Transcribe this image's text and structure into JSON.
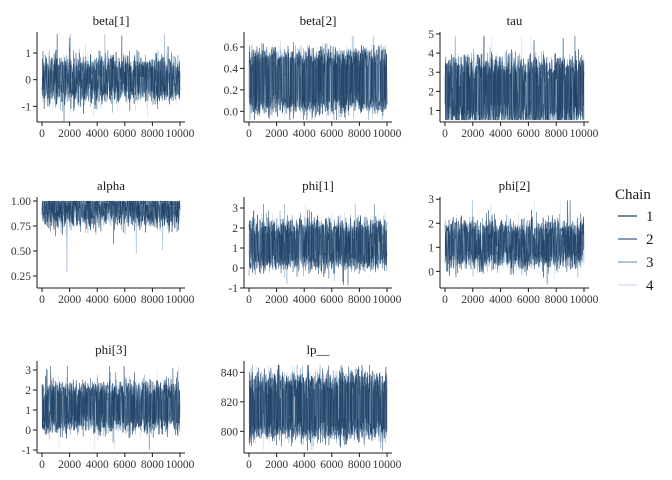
{
  "chart_data": [
    {
      "type": "line",
      "title": "beta[1]",
      "x_ticks": [
        "0",
        "2000",
        "4000",
        "6000",
        "8000",
        "10000"
      ],
      "xlim": [
        0,
        10000
      ],
      "y_ticks": [
        {
          "value": 1,
          "label": "1"
        },
        {
          "value": 0,
          "label": "0"
        },
        {
          "value": -1,
          "label": "-1"
        }
      ],
      "ylim": [
        -1.55,
        1.75
      ],
      "trace": {
        "n_iter": 10000,
        "mode_low": -0.45,
        "mode_high": 0.45,
        "spread": 0.28,
        "min": -1.55,
        "max": 1.7
      }
    },
    {
      "type": "line",
      "title": "beta[2]",
      "x_ticks": [
        "0",
        "2000",
        "4000",
        "6000",
        "8000",
        "10000"
      ],
      "xlim": [
        0,
        10000
      ],
      "y_ticks": [
        {
          "value": 0.6,
          "label": "0.6"
        },
        {
          "value": 0.4,
          "label": "0.4"
        },
        {
          "value": 0.2,
          "label": "0.2"
        },
        {
          "value": 0.0,
          "label": "0.0"
        }
      ],
      "ylim": [
        -0.09,
        0.73
      ],
      "trace": {
        "n_iter": 10000,
        "mode_low": 0.07,
        "mode_high": 0.5,
        "spread": 0.055,
        "min": -0.08,
        "max": 0.7
      }
    },
    {
      "type": "line",
      "title": "tau",
      "x_ticks": [
        "0",
        "2000",
        "4000",
        "6000",
        "8000",
        "10000"
      ],
      "xlim": [
        0,
        10000
      ],
      "y_ticks": [
        {
          "value": 5,
          "label": "5"
        },
        {
          "value": 4,
          "label": "4"
        },
        {
          "value": 3,
          "label": "3"
        },
        {
          "value": 2,
          "label": "2"
        },
        {
          "value": 1,
          "label": "1"
        }
      ],
      "ylim": [
        0.45,
        5.05
      ],
      "trace": {
        "n_iter": 10000,
        "mode_low": 0.75,
        "mode_high": 3.2,
        "spread": 0.42,
        "min": 0.5,
        "max": 4.9
      }
    },
    {
      "type": "line",
      "title": "alpha",
      "x_ticks": [
        "0",
        "2000",
        "4000",
        "6000",
        "8000",
        "10000"
      ],
      "xlim": [
        0,
        10000
      ],
      "y_ticks": [
        {
          "value": 1.0,
          "label": "1.00"
        },
        {
          "value": 0.75,
          "label": "0.75"
        },
        {
          "value": 0.5,
          "label": "0.50"
        },
        {
          "value": 0.25,
          "label": "0.25"
        }
      ],
      "ylim": [
        0.14,
        1.03
      ],
      "trace": {
        "n_iter": 10000,
        "mode_low": 0.85,
        "mode_high": 1.0,
        "spread": 0.07,
        "min": 0.15,
        "max": 1.0
      }
    },
    {
      "type": "line",
      "title": "phi[1]",
      "x_ticks": [
        "0",
        "2000",
        "4000",
        "6000",
        "8000",
        "10000"
      ],
      "xlim": [
        0,
        10000
      ],
      "y_ticks": [
        {
          "value": 3,
          "label": "3"
        },
        {
          "value": 2,
          "label": "2"
        },
        {
          "value": 1,
          "label": "1"
        },
        {
          "value": 0,
          "label": "0"
        },
        {
          "value": -1,
          "label": "-1"
        }
      ],
      "ylim": [
        -0.95,
        3.5
      ],
      "trace": {
        "n_iter": 10000,
        "mode_low": 0.4,
        "mode_high": 2.0,
        "spread": 0.3,
        "min": -0.85,
        "max": 3.2
      }
    },
    {
      "type": "line",
      "title": "phi[2]",
      "x_ticks": [
        "0",
        "2000",
        "4000",
        "6000",
        "8000",
        "10000"
      ],
      "xlim": [
        0,
        10000
      ],
      "y_ticks": [
        {
          "value": 3,
          "label": "3"
        },
        {
          "value": 2,
          "label": "2"
        },
        {
          "value": 1,
          "label": "1"
        },
        {
          "value": 0,
          "label": "0"
        }
      ],
      "ylim": [
        -0.65,
        3.05
      ],
      "trace": {
        "n_iter": 10000,
        "mode_low": 0.55,
        "mode_high": 1.7,
        "spread": 0.28,
        "min": -0.55,
        "max": 2.95
      }
    },
    {
      "type": "line",
      "title": "phi[3]",
      "x_ticks": [
        "0",
        "2000",
        "4000",
        "6000",
        "8000",
        "10000"
      ],
      "xlim": [
        0,
        10000
      ],
      "y_ticks": [
        {
          "value": 3,
          "label": "3"
        },
        {
          "value": 2,
          "label": "2"
        },
        {
          "value": 1,
          "label": "1"
        },
        {
          "value": 0,
          "label": "0"
        },
        {
          "value": -1,
          "label": "-1"
        }
      ],
      "ylim": [
        -1.1,
        3.4
      ],
      "trace": {
        "n_iter": 10000,
        "mode_low": 0.35,
        "mode_high": 1.95,
        "spread": 0.3,
        "min": -1.0,
        "max": 3.2
      }
    },
    {
      "type": "line",
      "title": "lp__",
      "x_ticks": [
        "0",
        "2000",
        "4000",
        "6000",
        "8000",
        "10000"
      ],
      "xlim": [
        0,
        10000
      ],
      "y_ticks": [
        {
          "value": 840,
          "label": "840"
        },
        {
          "value": 820,
          "label": "820"
        },
        {
          "value": 800,
          "label": "800"
        }
      ],
      "ylim": [
        786,
        847
      ],
      "trace": {
        "n_iter": 10000,
        "mode_low": 801,
        "mode_high": 833,
        "spread": 4.5,
        "min": 787,
        "max": 845
      }
    }
  ],
  "legend": {
    "title": "Chain",
    "position": "right",
    "entries": [
      {
        "label": "1",
        "color": "#1f3e63"
      },
      {
        "label": "2",
        "color": "#3c6287"
      },
      {
        "label": "3",
        "color": "#7fa5c2"
      },
      {
        "label": "4",
        "color": "#cfdeea"
      }
    ]
  },
  "band_color": "#cfdeea",
  "layout": {
    "columns": 3,
    "rows": 3
  }
}
